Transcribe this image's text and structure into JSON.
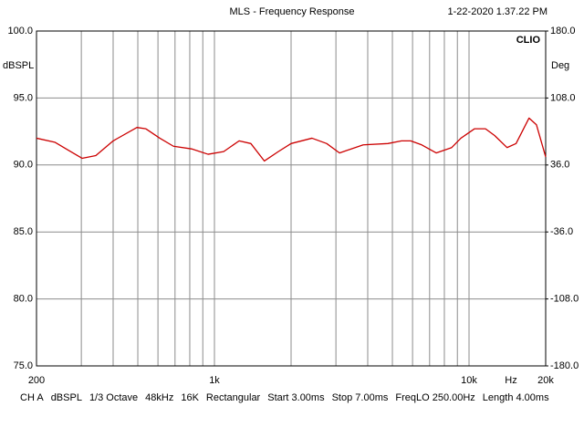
{
  "chart_data": {
    "type": "line",
    "title": "MLS - Frequency Response",
    "timestamp": "1-22-2020 1.37.22 PM",
    "brand": "CLIO",
    "y_label": "dBSPL",
    "y2_label": "Deg",
    "x_unit": "Hz",
    "log_x": true,
    "grid": true,
    "color": "#cc0000",
    "x": [
      200,
      236,
      267,
      302,
      342,
      400,
      496,
      538,
      610,
      690,
      813,
      944,
      1087,
      1250,
      1390,
      1570,
      1782,
      2000,
      2416,
      2760,
      3100,
      3840,
      4800,
      5430,
      5900,
      6520,
      7430,
      8550,
      9290,
      10500,
      11600,
      12600,
      14100,
      15300,
      17200,
      18400,
      20000
    ],
    "values": [
      92.0,
      91.7,
      91.1,
      90.5,
      90.7,
      91.8,
      92.8,
      92.7,
      92.0,
      91.4,
      91.2,
      90.8,
      91.0,
      91.8,
      91.6,
      90.3,
      91.0,
      91.6,
      92.0,
      91.6,
      90.9,
      91.5,
      91.6,
      91.8,
      91.8,
      91.5,
      90.9,
      91.3,
      92.0,
      92.7,
      92.7,
      92.2,
      91.3,
      91.6,
      93.5,
      93.0,
      90.6
    ],
    "xlim": [
      200,
      20000
    ],
    "xticks": [
      {
        "value": 200,
        "label": "200"
      },
      {
        "value": 1000,
        "label": "1k"
      },
      {
        "value": 10000,
        "label": "10k"
      },
      {
        "value": 20000,
        "label": "20k"
      }
    ],
    "xgrid": [
      300,
      400,
      500,
      600,
      700,
      800,
      900,
      2000,
      3000,
      4000,
      5000,
      6000,
      7000,
      8000,
      9000
    ],
    "ylim": [
      75,
      100
    ],
    "yticks": [
      {
        "value": 75,
        "label": "75.0"
      },
      {
        "value": 80,
        "label": "80.0"
      },
      {
        "value": 85,
        "label": "85.0"
      },
      {
        "value": 90,
        "label": "90.0"
      },
      {
        "value": 95,
        "label": "95.0"
      },
      {
        "value": 100,
        "label": "100.0"
      }
    ],
    "y2lim": [
      -180,
      180
    ],
    "y2ticks": [
      {
        "value": -180,
        "label": "-180.0"
      },
      {
        "value": -108,
        "label": "-108.0"
      },
      {
        "value": -36,
        "label": "-36.0"
      },
      {
        "value": 36,
        "label": "36.0"
      },
      {
        "value": 108,
        "label": "108.0"
      },
      {
        "value": 180,
        "label": "180.0"
      }
    ],
    "footer": [
      "CH A",
      "dBSPL",
      "1/3 Octave",
      "48kHz",
      "16K",
      "Rectangular",
      "Start 3.00ms",
      "Stop 7.00ms",
      "FreqLO 250.00Hz",
      "Length 4.00ms"
    ]
  }
}
